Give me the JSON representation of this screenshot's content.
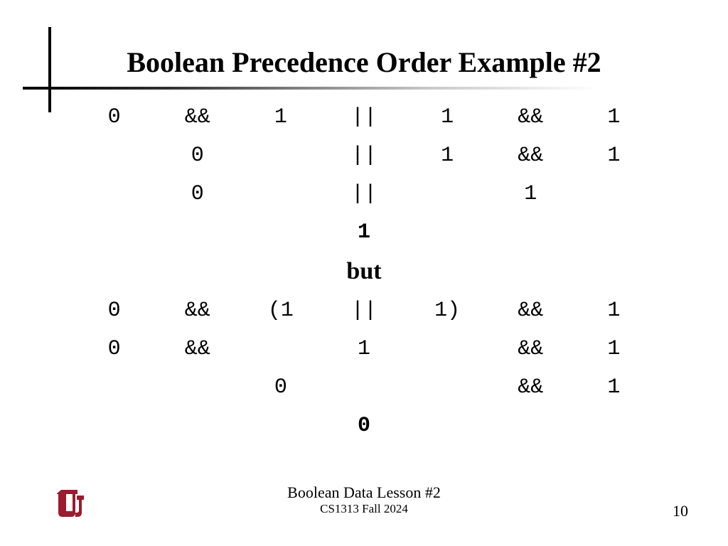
{
  "title": "Boolean Precedence Order Example #2",
  "grid_a": {
    "rows": [
      [
        "0",
        "&&",
        "1",
        "||",
        "1",
        "&&",
        "1"
      ],
      [
        "",
        "0",
        "",
        "||",
        "1",
        "&&",
        "1"
      ],
      [
        "",
        "0",
        "",
        "||",
        "",
        "1",
        ""
      ]
    ],
    "result": "1"
  },
  "separator": "but",
  "grid_b": {
    "rows": [
      [
        "0",
        "&&",
        "(1",
        "||",
        "1)",
        "&&",
        "1"
      ],
      [
        "0",
        "&&",
        "",
        "1",
        "",
        "&&",
        "1"
      ],
      [
        "",
        "",
        "0",
        "",
        "",
        "&&",
        "1"
      ]
    ],
    "result": "0"
  },
  "footer": {
    "line1": "Boolean Data Lesson #2",
    "line2": "CS1313 Fall 2024",
    "page": "10"
  },
  "colors": {
    "text": "#000000",
    "background": "#ffffff",
    "logo": "#9b1b30"
  },
  "fonts": {
    "title_family": "Times New Roman",
    "mono_family": "Courier New",
    "title_size_pt": 30,
    "body_size_pt": 22,
    "footer_size_pt": 16
  }
}
